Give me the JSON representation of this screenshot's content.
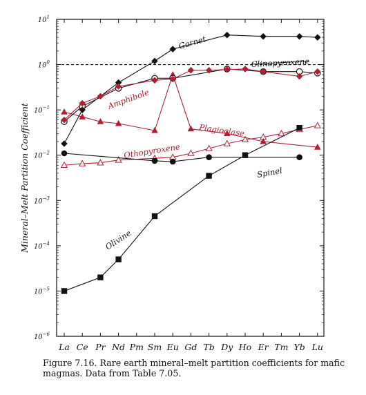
{
  "caption": "Figure 7.16.  Rare earth mineral–melt partition coefficients for mafic magmas.  Data from Table 7.05.",
  "chart_data": {
    "type": "line",
    "title": "",
    "xlabel": "",
    "ylabel": "Mineral–Melt Partition Coefficient",
    "categories": [
      "La",
      "Ce",
      "Pr",
      "Nd",
      "Pm",
      "Sm",
      "Eu",
      "Gd",
      "Tb",
      "Dy",
      "Ho",
      "Er",
      "Tm",
      "Yb",
      "Lu"
    ],
    "y_scale": "log",
    "ylim": [
      1e-06,
      10
    ],
    "y_ticks": [
      {
        "value": 10,
        "base": "10",
        "exp": "1"
      },
      {
        "value": 1,
        "base": "10",
        "exp": "0"
      },
      {
        "value": 0.1,
        "base": "10",
        "exp": "−1"
      },
      {
        "value": 0.01,
        "base": "10",
        "exp": "−2"
      },
      {
        "value": 0.001,
        "base": "10",
        "exp": "−3"
      },
      {
        "value": 0.0001,
        "base": "10",
        "exp": "−4"
      },
      {
        "value": 1e-05,
        "base": "10",
        "exp": "−5"
      },
      {
        "value": 1e-06,
        "base": "10",
        "exp": "−6"
      }
    ],
    "reference_line": {
      "y": 1
    },
    "grid": false,
    "series": [
      {
        "name": "Garnet",
        "color": "#111111",
        "marker": "diamond-filled",
        "points": [
          [
            "La",
            0.018
          ],
          [
            "Ce",
            0.1
          ],
          [
            "Nd",
            0.4
          ],
          [
            "Sm",
            1.2
          ],
          [
            "Eu",
            2.2
          ],
          [
            "Dy",
            4.5
          ],
          [
            "Er",
            4.2
          ],
          [
            "Yb",
            4.2
          ],
          [
            "Lu",
            4.0
          ]
        ]
      },
      {
        "name": "Clinopyroxene",
        "color": "#111111",
        "marker": "circle-open",
        "points": [
          [
            "La",
            0.055
          ],
          [
            "Ce",
            0.12
          ],
          [
            "Nd",
            0.3
          ],
          [
            "Sm",
            0.5
          ],
          [
            "Eu",
            0.5
          ],
          [
            "Dy",
            0.8
          ],
          [
            "Er",
            0.7
          ],
          [
            "Yb",
            0.7
          ],
          [
            "Lu",
            0.65
          ]
        ]
      },
      {
        "name": "Amphibole",
        "color": "#b02035",
        "marker": "diamond-filled",
        "points": [
          [
            "La",
            0.06
          ],
          [
            "Ce",
            0.14
          ],
          [
            "Pr",
            0.2
          ],
          [
            "Nd",
            0.33
          ],
          [
            "Sm",
            0.45
          ],
          [
            "Eu",
            0.48
          ],
          [
            "Gd",
            0.75
          ],
          [
            "Tb",
            0.75
          ],
          [
            "Dy",
            0.78
          ],
          [
            "Ho",
            0.8
          ],
          [
            "Er",
            0.7
          ],
          [
            "Yb",
            0.55
          ],
          [
            "Lu",
            0.7
          ]
        ]
      },
      {
        "name": "Plagioclase",
        "color": "#b02035",
        "marker": "triangle-filled",
        "points": [
          [
            "La",
            0.09
          ],
          [
            "Ce",
            0.07
          ],
          [
            "Pr",
            0.055
          ],
          [
            "Nd",
            0.05
          ],
          [
            "Sm",
            0.035
          ],
          [
            "Eu",
            0.6
          ],
          [
            "Gd",
            0.038
          ],
          [
            "Dy",
            0.03
          ],
          [
            "Er",
            0.02
          ],
          [
            "Lu",
            0.015
          ]
        ]
      },
      {
        "name": "Othopyroxene",
        "color": "#b02035",
        "marker": "triangle-open",
        "points": [
          [
            "La",
            0.006
          ],
          [
            "Ce",
            0.0065
          ],
          [
            "Pr",
            0.0068
          ],
          [
            "Nd",
            0.0078
          ],
          [
            "Sm",
            0.0085
          ],
          [
            "Eu",
            0.009
          ],
          [
            "Gd",
            0.011
          ],
          [
            "Tb",
            0.014
          ],
          [
            "Dy",
            0.018
          ],
          [
            "Ho",
            0.022
          ],
          [
            "Er",
            0.025
          ],
          [
            "Tm",
            0.03
          ],
          [
            "Yb",
            0.037
          ],
          [
            "Lu",
            0.045
          ]
        ]
      },
      {
        "name": "Spinel",
        "color": "#111111",
        "marker": "circle-filled",
        "points": [
          [
            "La",
            0.011
          ],
          [
            "Sm",
            0.0075
          ],
          [
            "Eu",
            0.0072
          ],
          [
            "Tb",
            0.009
          ],
          [
            "Yb",
            0.009
          ]
        ]
      },
      {
        "name": "Olivine",
        "color": "#111111",
        "marker": "square-filled",
        "points": [
          [
            "La",
            1e-05
          ],
          [
            "Pr",
            2e-05
          ],
          [
            "Nd",
            5e-05
          ],
          [
            "Sm",
            0.00045
          ],
          [
            "Tb",
            0.0035
          ],
          [
            "Ho",
            0.01
          ],
          [
            "Yb",
            0.04
          ]
        ]
      }
    ],
    "annotations": [
      {
        "text": "Garnet",
        "series": "Garnet"
      },
      {
        "text": "Clinopyroxene",
        "series": "Clinopyroxene"
      },
      {
        "text": "Amphibole",
        "series": "Amphibole"
      },
      {
        "text": "Plagioclase",
        "series": "Plagioclase"
      },
      {
        "text": "Othopyroxene",
        "series": "Othopyroxene"
      },
      {
        "text": "Spinel",
        "series": "Spinel"
      },
      {
        "text": "Olivine",
        "series": "Olivine"
      }
    ]
  }
}
